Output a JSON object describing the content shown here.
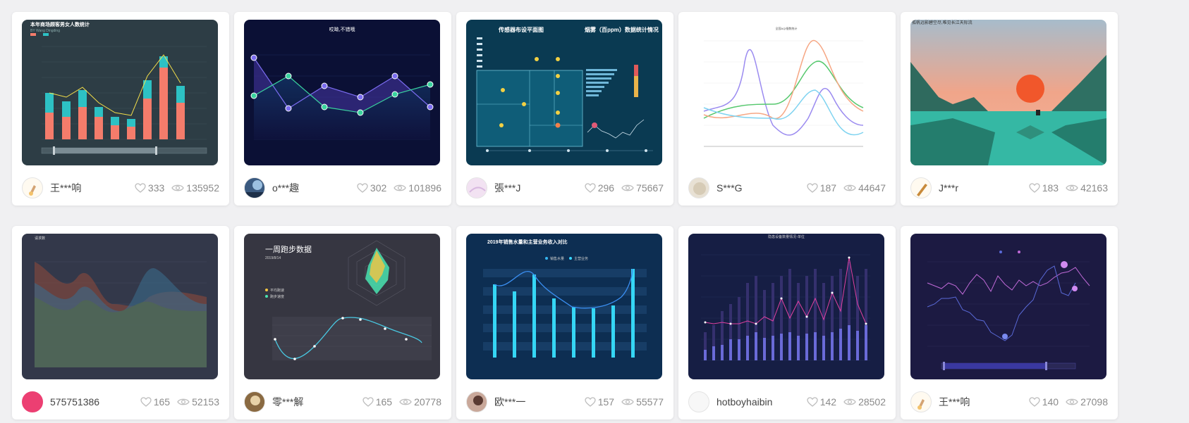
{
  "cards": [
    {
      "author": "王***响",
      "likes": "333",
      "views": "135952",
      "thumb": {
        "title": "本年商场顾客男女人数统计",
        "subtitle": "BY Wang Dingding"
      }
    },
    {
      "author": "o***趣",
      "likes": "302",
      "views": "101896",
      "thumb": {
        "title": "哎呦,不错哦"
      }
    },
    {
      "author": "張***J",
      "likes": "296",
      "views": "75667",
      "thumb": {
        "title": "传感器布设平面图",
        "title2": "烟雾（百ppm）数据统计情况"
      }
    },
    {
      "author": "S***G",
      "likes": "187",
      "views": "44647",
      "thumb": {
        "title": "全国AQI指数统计"
      }
    },
    {
      "author": "J***r",
      "likes": "183",
      "views": "42163",
      "thumb": {
        "title": "孤帆远影碧空尽,唯见长江天际流"
      }
    },
    {
      "author": "575751386",
      "likes": "165",
      "views": "52153",
      "thumb": {
        "title": "请求数"
      }
    },
    {
      "author": "零***解",
      "likes": "165",
      "views": "20778",
      "thumb": {
        "title": "一周跑步数据",
        "subtitle": "2019/8/14",
        "legend1": "平均跑速",
        "legend2": "跑步速度"
      }
    },
    {
      "author": "欧***一",
      "likes": "157",
      "views": "55577",
      "thumb": {
        "title": "2019年销售水量和主营业务收入对比",
        "legend1": "销售水量",
        "legend2": "主营业务"
      }
    },
    {
      "author": "hotboyhaibin",
      "likes": "142",
      "views": "28502",
      "thumb": {
        "title": "隐患设备数量情况-单位"
      }
    },
    {
      "author": "王***响",
      "likes": "140",
      "views": "27098",
      "thumb": {
        "title": ""
      }
    }
  ],
  "colors": {
    "accent": "#f4f4f4",
    "like": "#bdbdbd",
    "view": "#bdbdbd"
  },
  "icons": {
    "like": "heart-icon",
    "view": "eye-icon"
  }
}
